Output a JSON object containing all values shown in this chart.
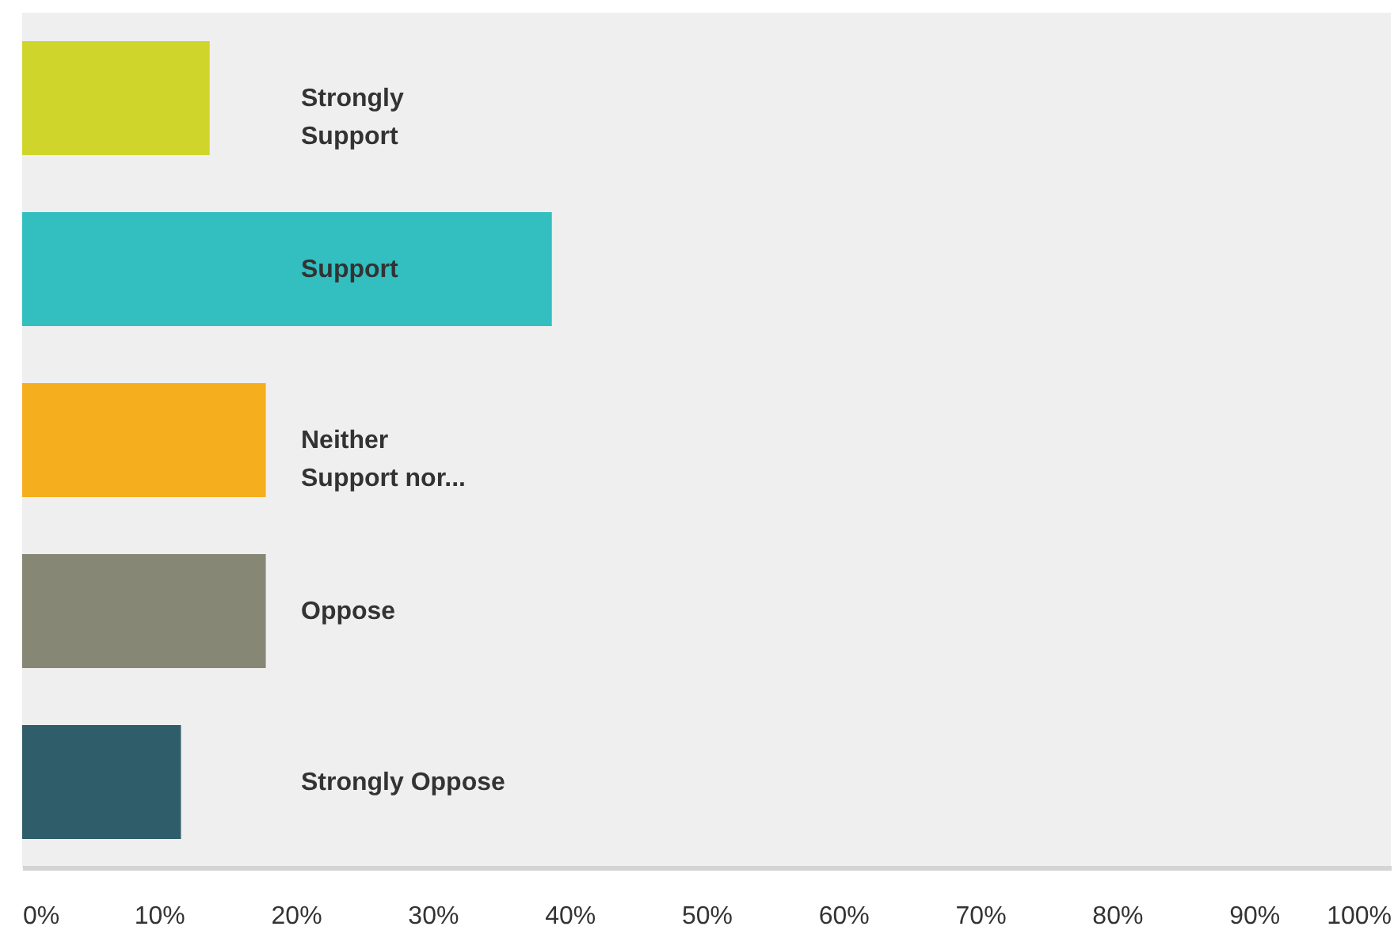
{
  "chart_data": {
    "type": "bar",
    "orientation": "horizontal",
    "categories": [
      "Strongly\nSupport",
      "Support",
      "Neither\nSupport nor...",
      "Oppose",
      "Strongly Oppose"
    ],
    "values": [
      13.7,
      38.7,
      17.8,
      17.8,
      11.6
    ],
    "colors": [
      "#d0d52b",
      "#33bec0",
      "#f5ae1e",
      "#878775",
      "#2f5e6a"
    ],
    "xlim": [
      0,
      100
    ],
    "xticks": [
      {
        "value": 0,
        "label": "0%"
      },
      {
        "value": 10,
        "label": "10%"
      },
      {
        "value": 20,
        "label": "20%"
      },
      {
        "value": 30,
        "label": "30%"
      },
      {
        "value": 40,
        "label": "40%"
      },
      {
        "value": 50,
        "label": "50%"
      },
      {
        "value": 60,
        "label": "60%"
      },
      {
        "value": 70,
        "label": "70%"
      },
      {
        "value": 80,
        "label": "80%"
      },
      {
        "value": 90,
        "label": "90%"
      },
      {
        "value": 100,
        "label": "100%"
      }
    ],
    "grid": false
  }
}
